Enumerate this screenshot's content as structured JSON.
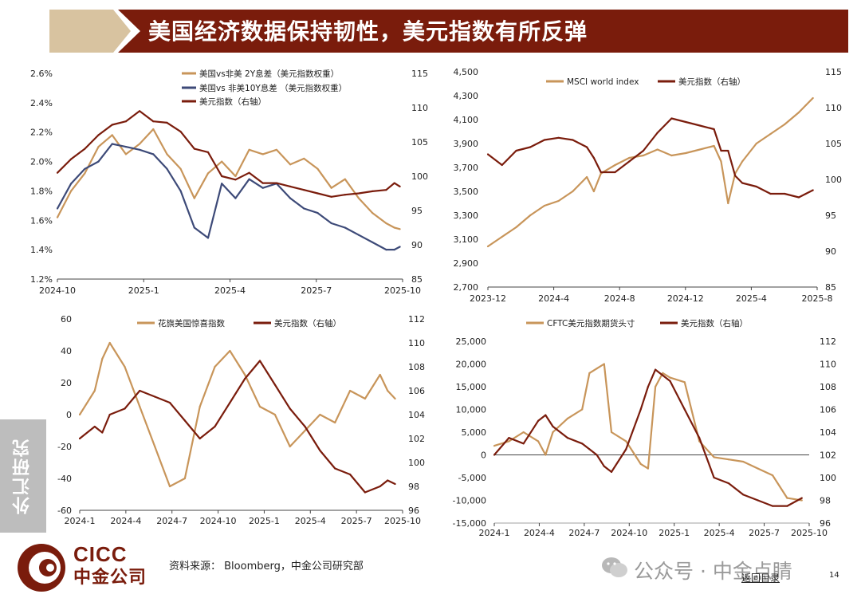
{
  "header": {
    "title": "美国经济数据保持韧性，美元指数有所反弹"
  },
  "side_tab": {
    "label": "外汇研究"
  },
  "footer": {
    "logo_en": "CICC",
    "logo_cn": "中金公司",
    "source": "资料来源： Bloomberg，中金公司研究部",
    "watermark": "公众号 · 中金点睛",
    "return_link": "返回目录",
    "page_number": "14"
  },
  "colors": {
    "gold": "#c8955a",
    "navy": "#3d4a78",
    "maroon": "#7a1c0c",
    "header_bg": "#7a1c0c",
    "header_tan": "#d8c3a0"
  },
  "chart_data": [
    {
      "type": "line",
      "title": "",
      "x_ticks": [
        "2024-10",
        "2025-1",
        "2025-4",
        "2025-7",
        "2025-10"
      ],
      "x_range": [
        0,
        12.6
      ],
      "y_left": {
        "ticks": [
          "1.2%",
          "1.4%",
          "1.6%",
          "1.8%",
          "2.0%",
          "2.2%",
          "2.4%",
          "2.6%"
        ],
        "range": [
          1.2,
          2.6
        ]
      },
      "y_right": {
        "ticks": [
          "85",
          "90",
          "95",
          "100",
          "105",
          "110",
          "115"
        ],
        "range": [
          85,
          115
        ]
      },
      "legend": "top-left",
      "series": [
        {
          "name": "美国vs非美 2Y息差（美元指数权重）",
          "axis": "left",
          "color": "#c8955a",
          "x": [
            0,
            0.5,
            1,
            1.5,
            2,
            2.5,
            3,
            3.5,
            4,
            4.5,
            5,
            5.5,
            6,
            6.5,
            7,
            7.5,
            8,
            8.5,
            9,
            9.5,
            10,
            10.5,
            11,
            11.5,
            12,
            12.3,
            12.5
          ],
          "values": [
            1.62,
            1.8,
            1.92,
            2.1,
            2.18,
            2.05,
            2.12,
            2.22,
            2.05,
            1.95,
            1.75,
            1.92,
            2.0,
            1.9,
            2.08,
            2.05,
            2.08,
            1.98,
            2.02,
            1.95,
            1.82,
            1.88,
            1.75,
            1.65,
            1.58,
            1.55,
            1.54
          ]
        },
        {
          "name": "美国vs 非美10Y息差 （美元指数权重）",
          "axis": "left",
          "color": "#3d4a78",
          "x": [
            0,
            0.5,
            1,
            1.5,
            2,
            2.5,
            3,
            3.5,
            4,
            4.5,
            5,
            5.5,
            6,
            6.5,
            7,
            7.5,
            8,
            8.5,
            9,
            9.5,
            10,
            10.5,
            11,
            11.5,
            12,
            12.3,
            12.5
          ],
          "values": [
            1.68,
            1.85,
            1.95,
            2.0,
            2.12,
            2.1,
            2.08,
            2.05,
            1.95,
            1.8,
            1.55,
            1.48,
            1.85,
            1.75,
            1.88,
            1.82,
            1.85,
            1.75,
            1.68,
            1.65,
            1.58,
            1.55,
            1.5,
            1.45,
            1.4,
            1.4,
            1.42
          ]
        },
        {
          "name": "美元指数（右轴）",
          "axis": "right",
          "color": "#7a1c0c",
          "x": [
            0,
            0.5,
            1,
            1.5,
            2,
            2.5,
            3,
            3.5,
            4,
            4.5,
            5,
            5.5,
            6,
            6.5,
            7,
            7.5,
            8,
            8.5,
            9,
            9.5,
            10,
            10.5,
            11,
            11.5,
            12,
            12.3,
            12.5
          ],
          "values": [
            100.5,
            102.5,
            104.0,
            106.0,
            107.5,
            108.0,
            109.5,
            108.0,
            107.8,
            106.5,
            104.0,
            103.5,
            100.0,
            99.5,
            100.5,
            99.0,
            99.0,
            98.5,
            98.0,
            97.5,
            97.0,
            97.3,
            97.5,
            97.8,
            98.0,
            99.0,
            98.5
          ]
        }
      ]
    },
    {
      "type": "line",
      "title": "",
      "x_ticks": [
        "2023-12",
        "2024-4",
        "2024-8",
        "2024-12",
        "2025-4",
        "2025-8"
      ],
      "x_range": [
        0,
        23.3
      ],
      "y_left": {
        "ticks": [
          "2,700",
          "2,900",
          "3,100",
          "3,300",
          "3,500",
          "3,700",
          "3,900",
          "4,100",
          "4,300",
          "4,500"
        ],
        "range": [
          2700,
          4500
        ]
      },
      "y_right": {
        "ticks": [
          "85",
          "90",
          "95",
          "100",
          "105",
          "110",
          "115"
        ],
        "range": [
          85,
          115
        ]
      },
      "legend": "top-center",
      "series": [
        {
          "name": "MSCI world index",
          "axis": "left",
          "color": "#c8955a",
          "x": [
            0,
            1,
            2,
            3,
            4,
            5,
            6,
            7,
            7.5,
            8,
            9,
            10,
            11,
            12,
            13,
            14,
            15,
            16,
            16.5,
            17,
            17.5,
            18,
            19,
            20,
            21,
            22,
            22.5,
            23
          ],
          "values": [
            3040,
            3120,
            3200,
            3300,
            3380,
            3420,
            3500,
            3620,
            3500,
            3650,
            3720,
            3780,
            3800,
            3850,
            3800,
            3820,
            3850,
            3880,
            3750,
            3400,
            3650,
            3750,
            3900,
            3980,
            4060,
            4160,
            4220,
            4280
          ]
        },
        {
          "name": "美元指数（右轴）",
          "axis": "right",
          "color": "#7a1c0c",
          "x": [
            0,
            1,
            2,
            3,
            4,
            5,
            6,
            7,
            7.5,
            8,
            9,
            10,
            11,
            12,
            13,
            14,
            15,
            16,
            16.5,
            17,
            17.5,
            18,
            19,
            20,
            21,
            22,
            22.5,
            23
          ],
          "values": [
            103.5,
            102.0,
            104.0,
            104.5,
            105.5,
            105.8,
            105.5,
            104.5,
            103.0,
            101.0,
            101.0,
            102.5,
            104.0,
            106.5,
            108.5,
            108.0,
            107.5,
            107.0,
            104.0,
            104.0,
            100.5,
            99.5,
            99.0,
            98.0,
            98.0,
            97.5,
            98.0,
            98.5
          ]
        }
      ]
    },
    {
      "type": "line",
      "title": "",
      "x_ticks": [
        "2024-1",
        "2024-4",
        "2024-7",
        "2024-10",
        "2025-1",
        "2025-4",
        "2025-7",
        "2025-10"
      ],
      "x_range": [
        0,
        21.5
      ],
      "y_left": {
        "ticks": [
          "-60",
          "-40",
          "-20",
          "0",
          "20",
          "40",
          "60"
        ],
        "range": [
          -60,
          60
        ]
      },
      "y_right": {
        "ticks": [
          "96",
          "98",
          "100",
          "102",
          "104",
          "106",
          "108",
          "110",
          "112"
        ],
        "range": [
          96,
          112
        ]
      },
      "legend": "top-center",
      "series": [
        {
          "name": "花旗美国惊喜指数",
          "axis": "left",
          "color": "#c8955a",
          "x": [
            0,
            1,
            1.5,
            2,
            3,
            4,
            5,
            6,
            7,
            8,
            9,
            10,
            11,
            12,
            13,
            14,
            15,
            16,
            17,
            18,
            19,
            20,
            20.5,
            21
          ],
          "values": [
            0,
            15,
            35,
            45,
            30,
            5,
            -20,
            -45,
            -40,
            5,
            30,
            40,
            25,
            5,
            0,
            -20,
            -10,
            0,
            -5,
            15,
            10,
            25,
            15,
            10
          ]
        },
        {
          "name": "美元指数（右轴）",
          "axis": "right",
          "color": "#7a1c0c",
          "x": [
            0,
            1,
            1.5,
            2,
            3,
            4,
            5,
            6,
            7,
            8,
            9,
            10,
            11,
            12,
            13,
            14,
            15,
            16,
            17,
            18,
            19,
            20,
            20.5,
            21
          ],
          "values": [
            102.0,
            103.0,
            102.5,
            104.0,
            104.5,
            106.0,
            105.5,
            105.0,
            103.5,
            102.0,
            103.0,
            105.0,
            107.0,
            108.5,
            106.5,
            104.5,
            103.0,
            101.0,
            99.5,
            99.0,
            97.5,
            98.0,
            98.5,
            98.2
          ]
        }
      ]
    },
    {
      "type": "line",
      "title": "",
      "x_ticks": [
        "2024-1",
        "2024-4",
        "2024-7",
        "2024-10",
        "2025-1",
        "2025-4",
        "2025-7",
        "2025-10"
      ],
      "x_range": [
        0,
        21.5
      ],
      "y_left": {
        "ticks": [
          "-15,000",
          "-10,000",
          "-5,000",
          "0",
          "5,000",
          "10,000",
          "15,000",
          "20,000",
          "25,000"
        ],
        "range": [
          -15000,
          25000
        ]
      },
      "y_right": {
        "ticks": [
          "96",
          "98",
          "100",
          "102",
          "104",
          "106",
          "108",
          "110",
          "112"
        ],
        "range": [
          96,
          112
        ]
      },
      "legend": "top-center",
      "series": [
        {
          "name": "CFTC美元指数期货头寸",
          "axis": "left",
          "color": "#c8955a",
          "x": [
            0,
            1,
            2,
            3,
            3.5,
            4,
            5,
            6,
            6.5,
            7,
            7.5,
            8,
            9,
            10,
            10.5,
            11,
            11.5,
            12,
            13,
            14,
            15,
            16,
            17,
            18,
            19,
            20,
            21
          ],
          "values": [
            2000,
            3000,
            5000,
            3000,
            0,
            5000,
            8000,
            10000,
            18000,
            19000,
            20000,
            5000,
            3000,
            -2000,
            -3000,
            15000,
            18000,
            17000,
            16000,
            3000,
            -500,
            -1000,
            -1500,
            -3000,
            -4500,
            -9500,
            -10000
          ]
        },
        {
          "name": "美元指数（右轴）",
          "axis": "right",
          "color": "#7a1c0c",
          "x": [
            0,
            1,
            2,
            3,
            3.5,
            4,
            5,
            6,
            6.5,
            7,
            7.5,
            8,
            9,
            10,
            10.5,
            11,
            11.5,
            12,
            13,
            14,
            15,
            16,
            17,
            18,
            19,
            20,
            21
          ],
          "values": [
            102.0,
            103.5,
            103.0,
            105.0,
            105.5,
            104.5,
            103.5,
            103.0,
            102.5,
            102.0,
            101.0,
            100.5,
            102.5,
            106.0,
            108.0,
            109.5,
            109.0,
            108.5,
            106.0,
            103.5,
            100.0,
            99.5,
            98.5,
            98.0,
            97.5,
            97.5,
            98.2
          ]
        }
      ]
    }
  ]
}
